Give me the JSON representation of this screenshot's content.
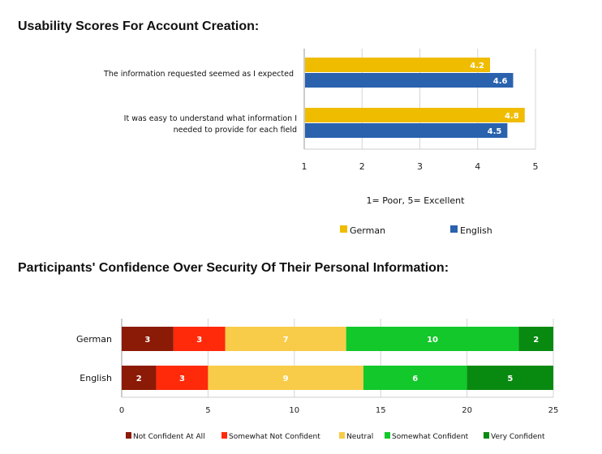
{
  "chart_data": [
    {
      "type": "bar",
      "orientation": "horizontal",
      "title": "Usability Scores For Account Creation:",
      "categories": [
        "The information requested seemed as I expected",
        "It was easy to understand what information I needed to provide for each field"
      ],
      "category_lines": [
        [
          "The information requested seemed as I expected"
        ],
        [
          "It was easy to understand what information I",
          "needed to provide for each field"
        ]
      ],
      "series": [
        {
          "name": "German",
          "values": [
            4.2,
            4.8
          ],
          "color": "#f0bc00"
        },
        {
          "name": "English",
          "values": [
            4.6,
            4.5
          ],
          "color": "#2a62ae"
        }
      ],
      "xlim": [
        1,
        5
      ],
      "xticks": [
        "1",
        "2",
        "3",
        "4",
        "5"
      ],
      "xlabel": "1= Poor,   5= Excellent",
      "grid": true,
      "legend": "bottom"
    },
    {
      "type": "bar",
      "orientation": "horizontal",
      "stacked": true,
      "title": "Participants' Confidence Over Security Of Their Personal Information:",
      "categories": [
        "German",
        "English"
      ],
      "series": [
        {
          "name": "Not Confident At All",
          "values": [
            3,
            2
          ],
          "color": "#8b1a06"
        },
        {
          "name": "Somewhat Not Confident",
          "values": [
            3,
            3
          ],
          "color": "#ff2a0a"
        },
        {
          "name": "Neutral",
          "values": [
            7,
            9
          ],
          "color": "#f8cc48"
        },
        {
          "name": "Somewhat Confident",
          "values": [
            10,
            6
          ],
          "color": "#12c82a"
        },
        {
          "name": "Very Confident",
          "values": [
            2,
            5
          ],
          "color": "#088a10"
        }
      ],
      "xlim": [
        0,
        25
      ],
      "xticks": [
        "0",
        "5",
        "10",
        "15",
        "20",
        "25"
      ],
      "grid": true,
      "legend": "bottom"
    }
  ]
}
